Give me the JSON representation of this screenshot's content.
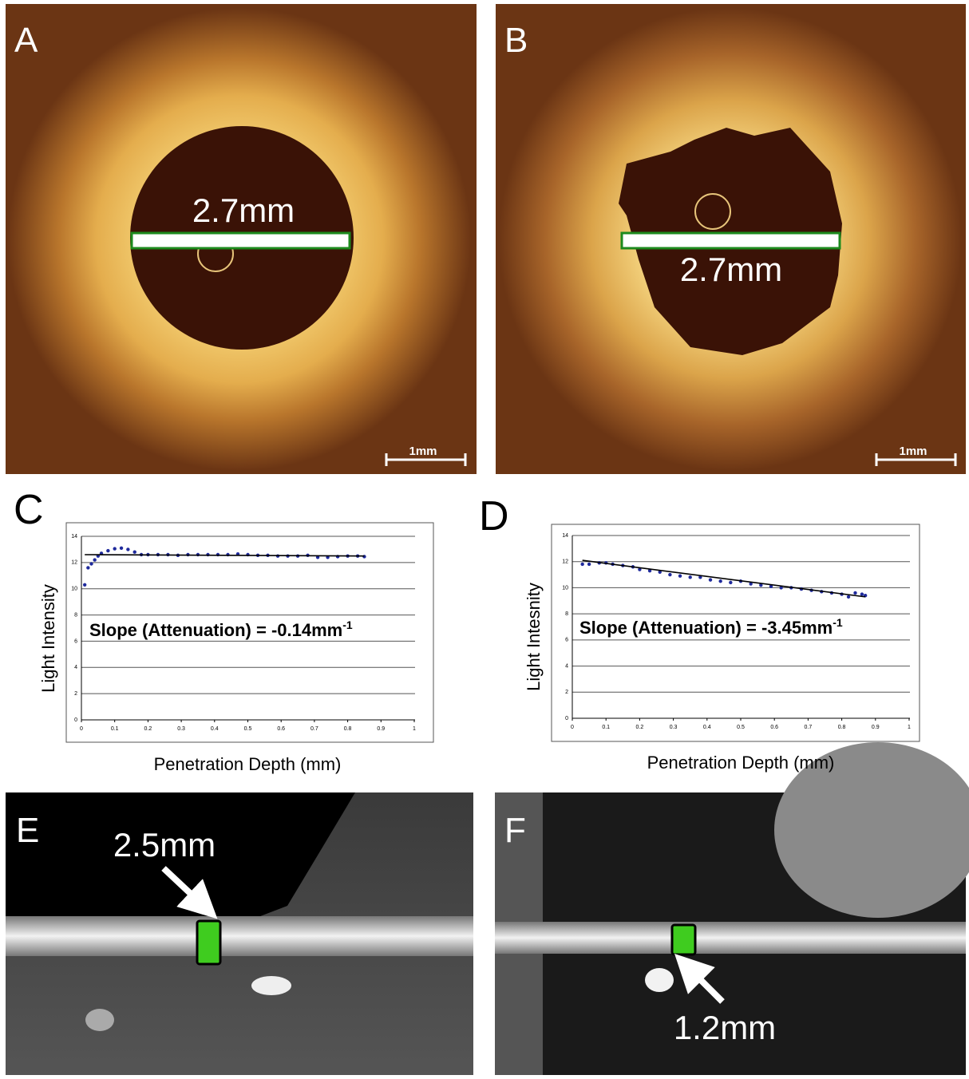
{
  "panels": [
    {
      "label": "A",
      "measurement": "2.7mm",
      "scale_bar": "1mm"
    },
    {
      "label": "B",
      "measurement": "2.7mm",
      "scale_bar": "1mm"
    },
    {
      "label": "E",
      "measurement": "2.5mm"
    },
    {
      "label": "F",
      "measurement": "1.2mm"
    }
  ],
  "chart_data": [
    {
      "type": "scatter",
      "panel_label": "C",
      "y_label": "Light Intensity",
      "x_label": "Penetration Depth (mm)",
      "annotation": "Slope (Attenuation) = -0.14mm",
      "annotation_superscript": "-1",
      "color": "#1f2a9c",
      "grid": true,
      "xlim": [
        0,
        1
      ],
      "xticks": [
        0,
        0.1,
        0.2,
        0.3,
        0.4,
        0.5,
        0.6,
        0.7,
        0.8,
        0.9,
        1
      ],
      "ylim": [
        0,
        14
      ],
      "yticks": [
        0,
        2,
        4,
        6,
        8,
        10,
        12,
        14
      ],
      "x": [
        0.01,
        0.02,
        0.03,
        0.04,
        0.05,
        0.06,
        0.08,
        0.1,
        0.12,
        0.14,
        0.16,
        0.18,
        0.2,
        0.23,
        0.26,
        0.29,
        0.32,
        0.35,
        0.38,
        0.41,
        0.44,
        0.47,
        0.5,
        0.53,
        0.56,
        0.59,
        0.62,
        0.65,
        0.68,
        0.71,
        0.74,
        0.77,
        0.8,
        0.83,
        0.85
      ],
      "values": [
        10.3,
        11.6,
        11.9,
        12.2,
        12.5,
        12.7,
        12.9,
        13.05,
        13.1,
        13.0,
        12.8,
        12.6,
        12.6,
        12.6,
        12.6,
        12.55,
        12.6,
        12.6,
        12.6,
        12.6,
        12.6,
        12.65,
        12.6,
        12.55,
        12.55,
        12.5,
        12.5,
        12.5,
        12.55,
        12.4,
        12.4,
        12.45,
        12.5,
        12.5,
        12.45
      ],
      "trend": {
        "x": [
          0.01,
          0.85
        ],
        "values": [
          12.6,
          12.5
        ]
      }
    },
    {
      "type": "scatter",
      "panel_label": "D",
      "y_label": "Light Intesnity",
      "x_label": "Penetration Depth (mm)",
      "annotation": "Slope (Attenuation) = -3.45mm",
      "annotation_superscript": "-1",
      "color": "#1f2a9c",
      "grid": true,
      "xlim": [
        0,
        1
      ],
      "xticks": [
        0,
        0.1,
        0.2,
        0.3,
        0.4,
        0.5,
        0.6,
        0.7,
        0.8,
        0.9,
        1
      ],
      "ylim": [
        0,
        14
      ],
      "yticks": [
        0,
        2,
        4,
        6,
        8,
        10,
        12,
        14
      ],
      "x": [
        0.03,
        0.05,
        0.08,
        0.1,
        0.12,
        0.15,
        0.18,
        0.2,
        0.23,
        0.26,
        0.29,
        0.32,
        0.35,
        0.38,
        0.41,
        0.44,
        0.47,
        0.5,
        0.53,
        0.56,
        0.59,
        0.62,
        0.65,
        0.68,
        0.71,
        0.74,
        0.77,
        0.8,
        0.82,
        0.84,
        0.86,
        0.87
      ],
      "values": [
        11.8,
        11.8,
        11.9,
        11.9,
        11.8,
        11.7,
        11.6,
        11.4,
        11.3,
        11.2,
        11.0,
        10.9,
        10.8,
        10.8,
        10.6,
        10.5,
        10.4,
        10.5,
        10.3,
        10.2,
        10.1,
        10.0,
        10.0,
        9.9,
        9.8,
        9.7,
        9.6,
        9.5,
        9.3,
        9.6,
        9.5,
        9.4
      ],
      "trend": {
        "x": [
          0.03,
          0.87
        ],
        "values": [
          12.1,
          9.3
        ]
      }
    }
  ]
}
